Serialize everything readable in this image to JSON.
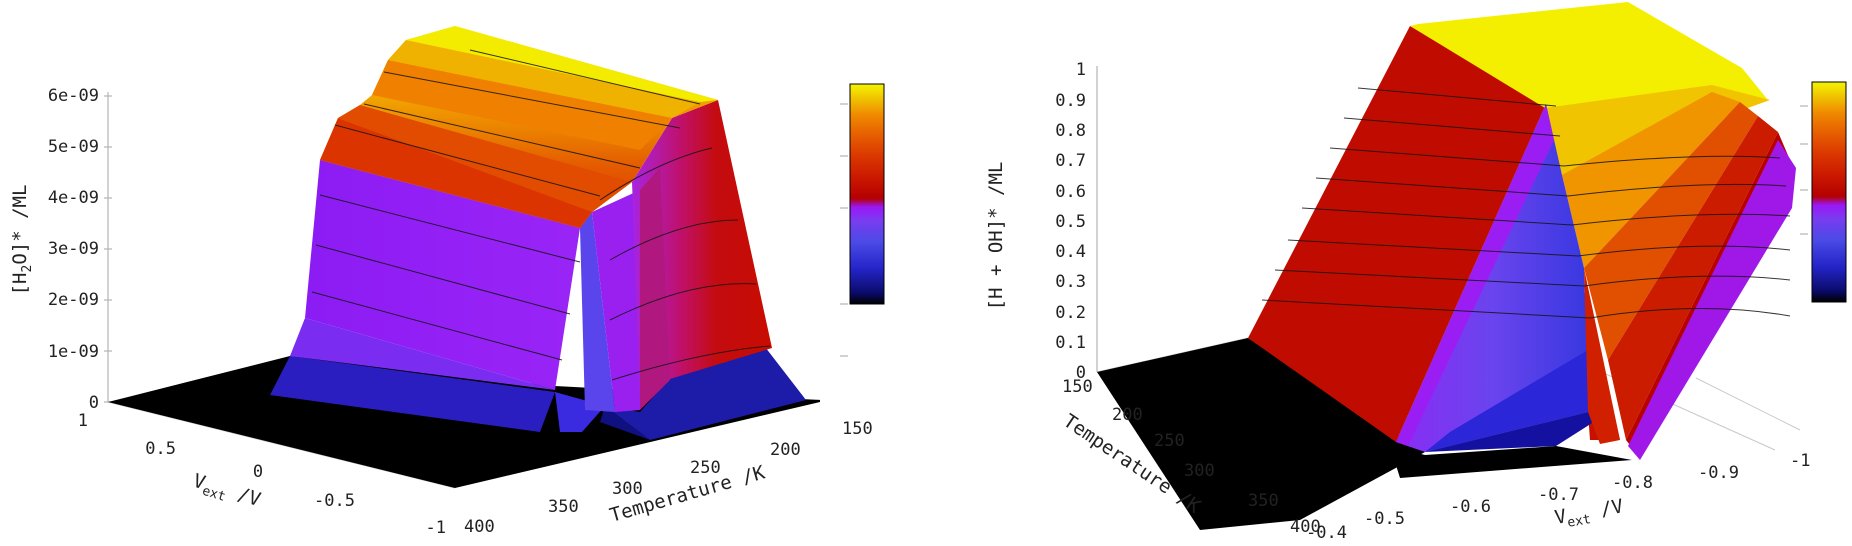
{
  "figure": {
    "panels": [
      {
        "zlabel": "[H2O]* /ML",
        "zlabel_base": "[H",
        "zlabel_sub": "2",
        "zlabel_rest": "O]* /ML",
        "xlabel_main": "V",
        "xlabel_sub": "ext",
        "xlabel_rest": " /V",
        "ylabel": "Temperature /K",
        "z_ticks": [
          "0",
          "1e-09",
          "2e-09",
          "3e-09",
          "4e-09",
          "5e-09",
          "6e-09"
        ],
        "v_ticks": [
          "1",
          "0.5",
          "0",
          "-0.5",
          "-1"
        ],
        "t_ticks": [
          "400",
          "350",
          "300",
          "250",
          "200",
          "150"
        ]
      },
      {
        "zlabel": "[H + OH]* /ML",
        "xlabel_main": "V",
        "xlabel_sub": "ext",
        "xlabel_rest": " /V",
        "ylabel": "Temperature /K",
        "z_ticks": [
          "0",
          "0.1",
          "0.2",
          "0.3",
          "0.4",
          "0.5",
          "0.6",
          "0.7",
          "0.8",
          "0.9",
          "1"
        ],
        "t_ticks": [
          "150",
          "200",
          "250",
          "300",
          "350",
          "400"
        ],
        "v_ticks": [
          "-0.4",
          "-0.5",
          "-0.6",
          "-0.7",
          "-0.8",
          "-0.9",
          "-1"
        ]
      }
    ],
    "colormap": [
      "#000000",
      "#0b0b6a",
      "#2424c8",
      "#4a4ae6",
      "#7a3cf0",
      "#9a18f8",
      "#b40000",
      "#cc1a00",
      "#dc3a00",
      "#e86400",
      "#f08a00",
      "#f0b000",
      "#f0d800",
      "#f4f400"
    ]
  },
  "chart_data": [
    {
      "type": "surface3d",
      "title": "",
      "xlabel": "Vext /V",
      "ylabel": "Temperature /K",
      "zlabel": "[H2O]* /ML",
      "xlim": [
        -1,
        1
      ],
      "ylim": [
        150,
        400
      ],
      "zlim": [
        0,
        6e-09
      ],
      "colormap": "hot-purple",
      "colorbar": true,
      "temperature": [
        150,
        200,
        250,
        300,
        350,
        400
      ],
      "voltage": [
        1,
        0.5,
        0,
        -0.5,
        -1
      ],
      "z": [
        [
          0,
          0,
          4.8e-09,
          4.7e-09,
          6e-09
        ],
        [
          0,
          0,
          4.7e-09,
          4.6e-09,
          5.9e-09
        ],
        [
          0,
          0,
          4.6e-09,
          4.5e-09,
          5.8e-09
        ],
        [
          0,
          0,
          4.5e-09,
          4.4e-09,
          5.7e-09
        ],
        [
          0,
          0,
          4.4e-09,
          4.3e-09,
          5.5e-09
        ],
        [
          0,
          0,
          0,
          0,
          0
        ]
      ]
    },
    {
      "type": "surface3d",
      "title": "",
      "xlabel": "Vext /V",
      "ylabel": "Temperature /K",
      "zlabel": "[H + OH]* /ML",
      "xlim": [
        -1,
        -0.4
      ],
      "ylim": [
        150,
        400
      ],
      "zlim": [
        0,
        1
      ],
      "colormap": "hot-purple",
      "colorbar": true,
      "temperature": [
        150,
        200,
        250,
        300,
        350,
        400
      ],
      "voltage": [
        -0.4,
        -0.5,
        -0.6,
        -0.7,
        -0.8,
        -0.9,
        -1
      ],
      "z": [
        [
          0,
          0.05,
          0.3,
          0.75,
          0.95,
          1.0,
          1.0
        ],
        [
          0,
          0.05,
          0.25,
          0.7,
          0.9,
          1.0,
          1.0
        ],
        [
          0,
          0.04,
          0.2,
          0.6,
          0.85,
          1.0,
          1.0
        ],
        [
          0,
          0.03,
          0.15,
          0.5,
          0.8,
          0.95,
          1.0
        ],
        [
          0,
          0.02,
          0.1,
          0.4,
          0.7,
          0.9,
          0.98
        ],
        [
          0,
          0,
          0,
          0,
          0,
          0,
          0
        ]
      ]
    }
  ]
}
